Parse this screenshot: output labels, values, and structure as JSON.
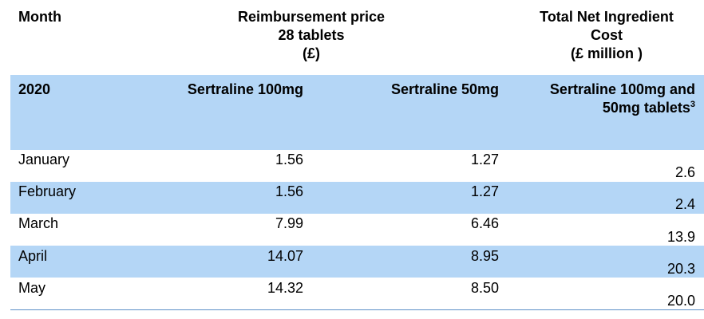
{
  "header": {
    "month": "Month",
    "price_line1": "Reimbursement price",
    "price_line2": "28 tablets",
    "price_line3": "(£)",
    "cost_line1": "Total Net Ingredient",
    "cost_line2": "Cost",
    "cost_line3": "(£ million )"
  },
  "subheader": {
    "year": "2020",
    "col1": "Sertraline 100mg",
    "col2": "Sertraline 50mg",
    "col3_line1": "Sertraline 100mg and",
    "col3_line2": "50mg tablets",
    "col3_sup": "3"
  },
  "rows": [
    {
      "month": "January",
      "p100": "1.56",
      "p50": "1.27",
      "cost": "2.6"
    },
    {
      "month": "February",
      "p100": "1.56",
      "p50": "1.27",
      "cost": "2.4"
    },
    {
      "month": "March",
      "p100": "7.99",
      "p50": "6.46",
      "cost": "13.9"
    },
    {
      "month": "April",
      "p100": "14.07",
      "p50": "8.95",
      "cost": "20.3"
    },
    {
      "month": "May",
      "p100": "14.32",
      "p50": "8.50",
      "cost": "20.0"
    }
  ],
  "colors": {
    "band": "#b4d6f6",
    "rule": "#5b8fc7"
  }
}
